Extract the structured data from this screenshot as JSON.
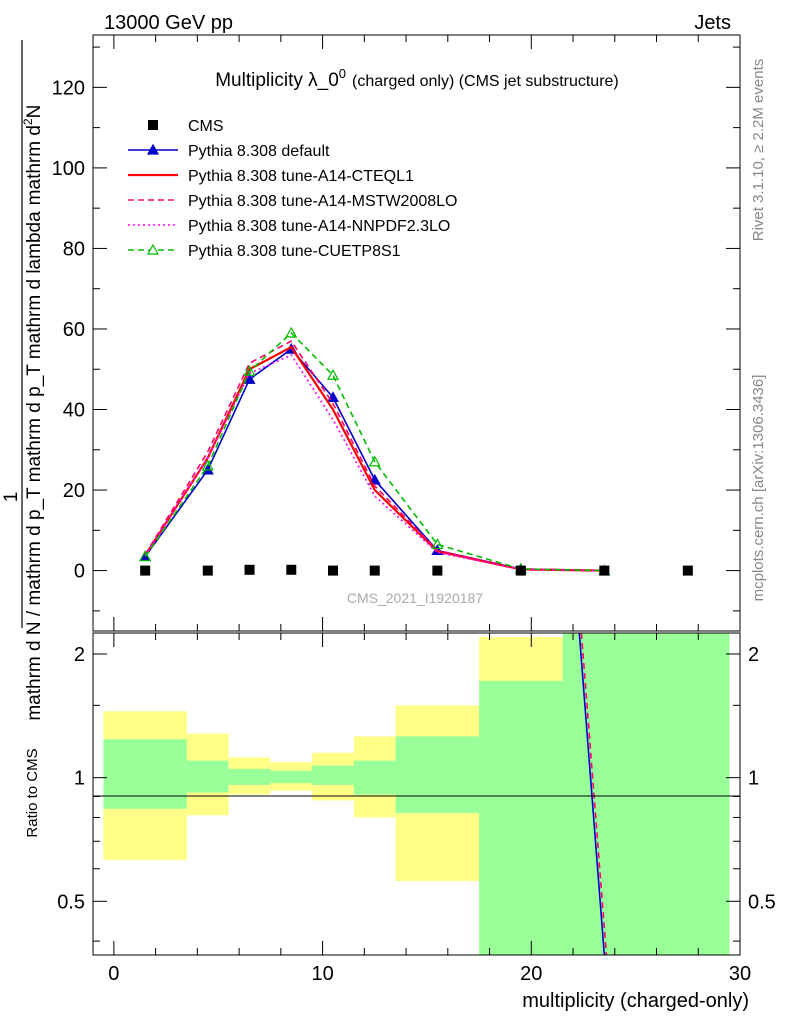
{
  "header": {
    "left": "13000 GeV pp",
    "right": "Jets"
  },
  "side_labels": {
    "rivet": "Rivet 3.1.10, ≥ 2.2M events",
    "mcplots": "mcplots.cern.ch [arXiv:1306.3436]"
  },
  "watermark": "CMS_2021_I1920187",
  "colors": {
    "data": "#000000",
    "default": "#0000cc",
    "cteql1": "#ff0000",
    "mstw": "#ff0066",
    "nnpdf": "#ff00ff",
    "cuetp8s1": "#00bb00",
    "band_inner": "#99ff99",
    "band_outer": "#ffff88"
  },
  "chart_data": [
    {
      "type": "line",
      "title": "Multiplicity λ_0",
      "title_sup": "0",
      "title_suffix": "(charged only) (CMS jet substructure)",
      "ylabel_top": "mathrm d",
      "ylabel_top_sup": "2",
      "ylabel_top_rest": "N",
      "ylabel_num_one": "1",
      "ylabel_bottom": "mathrm d N / mathrm d p_T mathrm d p_T mathrm d lambda",
      "xlim": [
        -1,
        30
      ],
      "ylim": [
        -15,
        133
      ],
      "yticks": [
        0,
        20,
        40,
        60,
        80,
        100,
        120
      ],
      "legend_position": "top-left",
      "legend": [
        {
          "key": "data",
          "label": "CMS"
        },
        {
          "key": "default",
          "label": "Pythia 8.308 default"
        },
        {
          "key": "cteql1",
          "label": "Pythia 8.308 tune-A14-CTEQL1"
        },
        {
          "key": "mstw",
          "label": "Pythia 8.308 tune-A14-MSTW2008LO"
        },
        {
          "key": "nnpdf",
          "label": "Pythia 8.308 tune-A14-NNPDF2.3LO"
        },
        {
          "key": "cuetp8s1",
          "label": "Pythia 8.308 tune-CUETP8S1"
        }
      ],
      "data_points": {
        "x": [
          1.5,
          4.5,
          6.5,
          8.5,
          10.5,
          12.5,
          15.5,
          19.5,
          23.5,
          27.5
        ],
        "y": [
          0,
          0,
          0.2,
          0.2,
          0,
          0,
          0,
          0,
          0,
          0
        ]
      },
      "series": [
        {
          "key": "default",
          "name": "Pythia 8.308 default",
          "style": "solid-triangle",
          "x": [
            1.5,
            4.5,
            6.5,
            8.5,
            10.5,
            12.5,
            15.5,
            19.5,
            23.5
          ],
          "y": [
            3.5,
            25,
            47.5,
            55,
            43,
            22.5,
            5,
            0.4,
            0
          ]
        },
        {
          "key": "cteql1",
          "name": "Pythia 8.308 tune-A14-CTEQL1",
          "style": "solid",
          "x": [
            1.5,
            4.5,
            6.5,
            8.5,
            10.5,
            12.5,
            15.5,
            19.5,
            23.5
          ],
          "y": [
            3.8,
            28,
            50,
            55.5,
            40,
            20,
            4.8,
            0.3,
            0
          ]
        },
        {
          "key": "mstw",
          "name": "Pythia 8.308 tune-A14-MSTW2008LO",
          "style": "dashed",
          "x": [
            1.5,
            4.5,
            6.5,
            8.5,
            10.5,
            12.5,
            15.5,
            19.5,
            23.5
          ],
          "y": [
            4,
            29.5,
            51.5,
            57,
            41.5,
            21,
            5,
            0.4,
            0
          ]
        },
        {
          "key": "nnpdf",
          "name": "Pythia 8.308 tune-A14-NNPDF2.3LO",
          "style": "dotted",
          "x": [
            1.5,
            4.5,
            6.5,
            8.5,
            10.5,
            12.5,
            15.5,
            19.5,
            23.5
          ],
          "y": [
            3.8,
            28,
            49,
            53.5,
            37.5,
            18.5,
            4.5,
            0.3,
            0
          ]
        },
        {
          "key": "cuetp8s1",
          "name": "Pythia 8.308 tune-CUETP8S1",
          "style": "dashed-open-triangle",
          "x": [
            1.5,
            4.5,
            6.5,
            8.5,
            10.5,
            12.5,
            15.5,
            19.5,
            23.5
          ],
          "y": [
            3.5,
            26,
            49.5,
            59,
            48.5,
            27,
            6.5,
            0.4,
            0
          ]
        }
      ]
    },
    {
      "type": "line",
      "title": "Ratio to CMS",
      "xlabel": "multiplicity (charged-only)",
      "ylabel": "Ratio to CMS",
      "xlim": [
        -1,
        30
      ],
      "ylim": [
        0.37,
        2.25
      ],
      "scale": "log",
      "xticks": [
        0,
        10,
        20,
        30
      ],
      "yticks": [
        0.5,
        1,
        2
      ],
      "bands": [
        {
          "x0": -0.5,
          "x1": 3.5,
          "inner": [
            0.84,
            1.24
          ],
          "outer": [
            0.63,
            1.45
          ]
        },
        {
          "x0": 3.5,
          "x1": 5.5,
          "inner": [
            0.92,
            1.1
          ],
          "outer": [
            0.81,
            1.28
          ]
        },
        {
          "x0": 5.5,
          "x1": 7.5,
          "inner": [
            0.96,
            1.05
          ],
          "outer": [
            0.91,
            1.12
          ]
        },
        {
          "x0": 7.5,
          "x1": 9.5,
          "inner": [
            0.97,
            1.04
          ],
          "outer": [
            0.93,
            1.09
          ]
        },
        {
          "x0": 9.5,
          "x1": 11.5,
          "inner": [
            0.96,
            1.07
          ],
          "outer": [
            0.88,
            1.15
          ]
        },
        {
          "x0": 11.5,
          "x1": 13.5,
          "inner": [
            0.91,
            1.1
          ],
          "outer": [
            0.8,
            1.26
          ]
        },
        {
          "x0": 13.5,
          "x1": 17.5,
          "inner": [
            0.82,
            1.26
          ],
          "outer": [
            0.56,
            1.5
          ]
        },
        {
          "x0": 17.5,
          "x1": 21.5,
          "inner": [
            0.37,
            1.72
          ],
          "outer": [
            0.37,
            2.2
          ]
        },
        {
          "x0": 21.5,
          "x1": 29.5,
          "inner": [
            0.37,
            2.25
          ],
          "outer": [
            0.37,
            2.25
          ]
        }
      ],
      "ratio_lines": [
        {
          "key": "default",
          "x": [
            22.3,
            23.5
          ],
          "y": [
            2.25,
            0.37
          ]
        },
        {
          "key": "mstw",
          "x": [
            22.4,
            23.6
          ],
          "y": [
            2.25,
            0.37
          ]
        }
      ]
    }
  ]
}
